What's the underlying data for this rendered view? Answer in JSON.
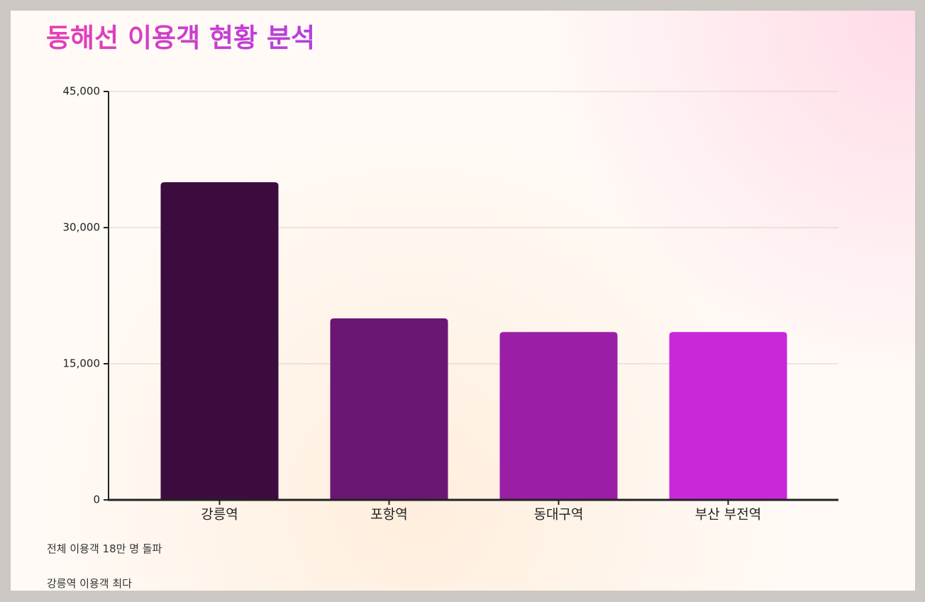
{
  "chart_data": {
    "type": "bar",
    "title": "동해선 이용객 현황 분석",
    "categories": [
      "강릉역",
      "포항역",
      "동대구역",
      "부산 부전역"
    ],
    "values": [
      35000,
      20000,
      18500,
      18500
    ],
    "colors": [
      "#3d0c3f",
      "#6b1673",
      "#9b1fa6",
      "#c828d8"
    ],
    "ylim": [
      0,
      45000
    ],
    "yticks": [
      0,
      {
        "value": 15000,
        "label": "15,000"
      },
      {
        "value": 30000,
        "label": "30,000"
      },
      {
        "value": 45000,
        "label": "45,000"
      }
    ],
    "grid": true,
    "annotations": [
      "전체 이용객 18만 명 돌파",
      "강릉역 이용객 최다"
    ]
  }
}
